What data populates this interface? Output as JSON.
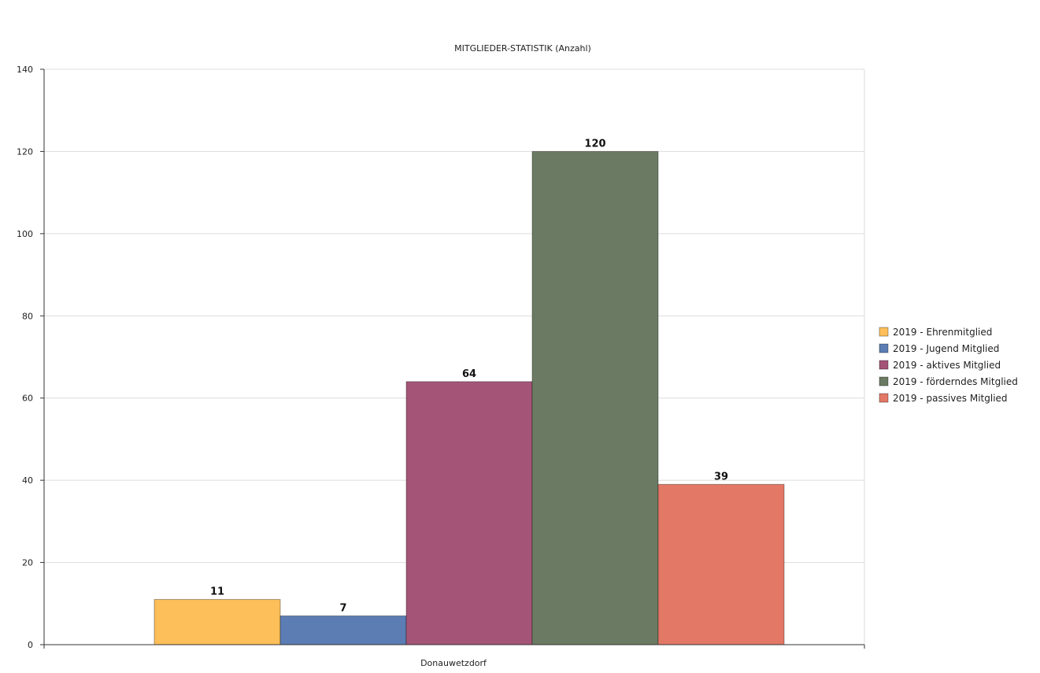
{
  "chart_data": {
    "type": "bar",
    "title": "MITGLIEDER-STATISTIK (Anzahl)",
    "xlabel": "",
    "ylabel": "",
    "categories": [
      "Donauwetzdorf"
    ],
    "series": [
      {
        "name": "2019 - Ehrenmitglied",
        "values": [
          11
        ],
        "color": "#fdbf5a"
      },
      {
        "name": "2019 - Jugend Mitglied",
        "values": [
          7
        ],
        "color": "#5b7db4"
      },
      {
        "name": "2019 - aktives Mitglied",
        "values": [
          64
        ],
        "color": "#a45577"
      },
      {
        "name": "2019 - förderndes Mitglied",
        "values": [
          120
        ],
        "color": "#6b7b63"
      },
      {
        "name": "2019 - passives Mitglied",
        "values": [
          39
        ],
        "color": "#e37866"
      }
    ],
    "ylim": [
      0,
      140
    ],
    "yticks": [
      0,
      20,
      40,
      60,
      80,
      100,
      120,
      140
    ],
    "grid": true,
    "legend_position": "right",
    "data_labels": true
  }
}
